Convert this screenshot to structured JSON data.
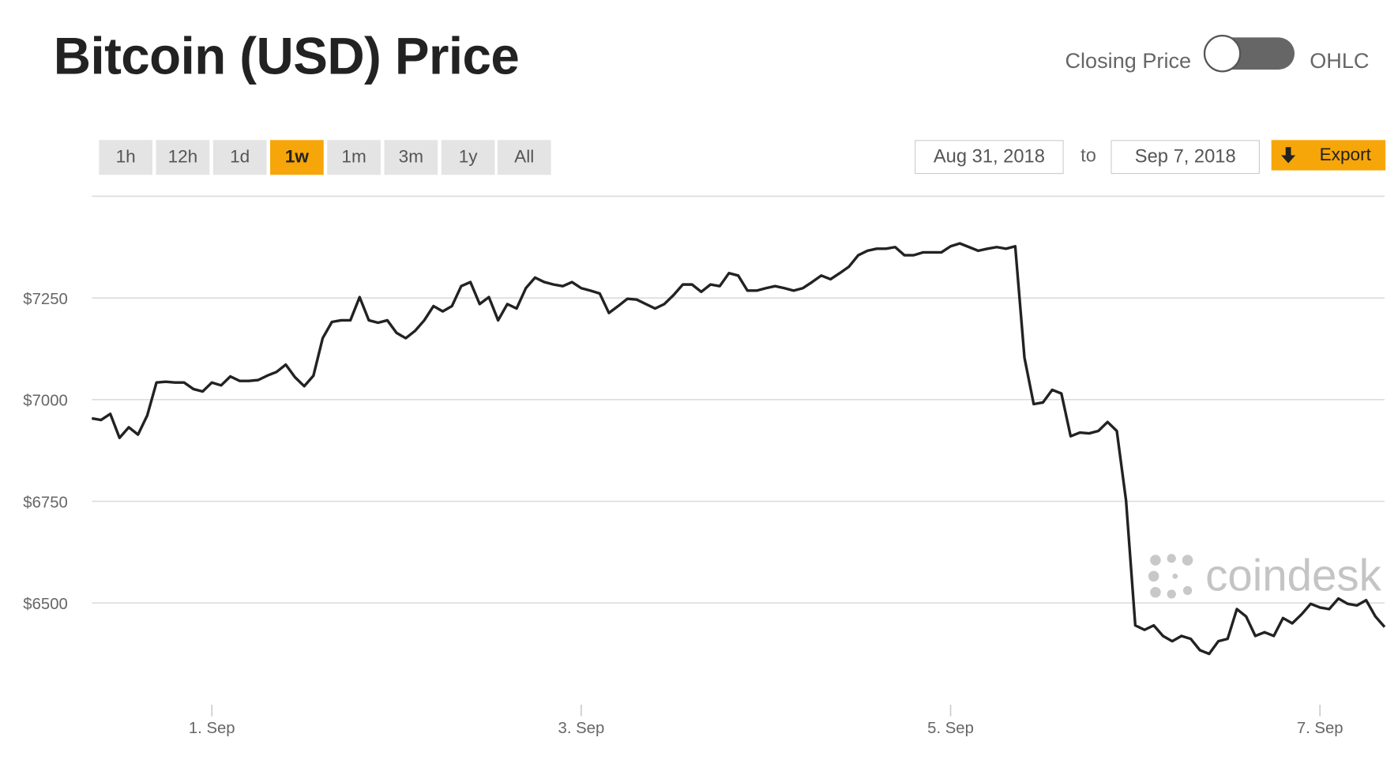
{
  "title": "Bitcoin (USD) Price",
  "toggle": {
    "left_label": "Closing Price",
    "right_label": "OHLC"
  },
  "ranges": [
    "1h",
    "12h",
    "1d",
    "1w",
    "1m",
    "3m",
    "1y",
    "All"
  ],
  "active_range": 3,
  "date_from": "Aug 31, 2018",
  "date_separator": "to",
  "date_to": "Sep 7, 2018",
  "export_label": "Export",
  "watermark": "coindesk",
  "chart_data": {
    "type": "line",
    "color": "#222222",
    "x": [
      0.35,
      0.4,
      0.45,
      0.5,
      0.55,
      0.6,
      0.65,
      0.7,
      0.75,
      0.8,
      0.85,
      0.9,
      0.95,
      1.0,
      1.05,
      1.1,
      1.15,
      1.2,
      1.25,
      1.3,
      1.35,
      1.4,
      1.45,
      1.5,
      1.55,
      1.6,
      1.65,
      1.7,
      1.75,
      1.8,
      1.85,
      1.9,
      1.95,
      2.0,
      2.05,
      2.1,
      2.15,
      2.2,
      2.25,
      2.3,
      2.35,
      2.4,
      2.45,
      2.5,
      2.55,
      2.6,
      2.65,
      2.7,
      2.75,
      2.8,
      2.85,
      2.9,
      2.95,
      3.0,
      3.05,
      3.1,
      3.15,
      3.2,
      3.25,
      3.3,
      3.35,
      3.4,
      3.45,
      3.5,
      3.55,
      3.6,
      3.65,
      3.7,
      3.75,
      3.8,
      3.85,
      3.9,
      3.95,
      4.0,
      4.05,
      4.1,
      4.15,
      4.2,
      4.25,
      4.3,
      4.35,
      4.4,
      4.45,
      4.5,
      4.55,
      4.6,
      4.65,
      4.7,
      4.75,
      4.8,
      4.85,
      4.9,
      4.95,
      5.0,
      5.05,
      5.1,
      5.15,
      5.2,
      5.25,
      5.3,
      5.35,
      5.4,
      5.45,
      5.5,
      5.55,
      5.6,
      5.65,
      5.7,
      5.75,
      5.8,
      5.85,
      5.9,
      5.95,
      6.0,
      6.05,
      6.1,
      6.15,
      6.2,
      6.25,
      6.3,
      6.35,
      6.4,
      6.45,
      6.5,
      6.55,
      6.6,
      6.65,
      6.7,
      6.75,
      6.8,
      6.85,
      6.9,
      6.95,
      7.0,
      7.05,
      7.1,
      7.15,
      7.2,
      7.25,
      7.3,
      7.35
    ],
    "values": [
      6954,
      6950,
      6965,
      6906,
      6932,
      6914,
      6961,
      7042,
      7044,
      7042,
      7042,
      7026,
      7020,
      7042,
      7035,
      7057,
      7046,
      7046,
      7048,
      7059,
      7068,
      7086,
      7055,
      7033,
      7059,
      7151,
      7191,
      7195,
      7195,
      7252,
      7195,
      7189,
      7195,
      7164,
      7151,
      7169,
      7195,
      7230,
      7217,
      7230,
      7279,
      7289,
      7235,
      7252,
      7195,
      7235,
      7224,
      7274,
      7300,
      7289,
      7283,
      7279,
      7289,
      7274,
      7268,
      7261,
      7213,
      7230,
      7248,
      7246,
      7235,
      7224,
      7235,
      7257,
      7283,
      7283,
      7265,
      7283,
      7279,
      7311,
      7305,
      7268,
      7268,
      7274,
      7279,
      7274,
      7268,
      7274,
      7289,
      7305,
      7296,
      7311,
      7327,
      7355,
      7366,
      7371,
      7371,
      7375,
      7355,
      7355,
      7362,
      7362,
      7362,
      7377,
      7384,
      7375,
      7366,
      7371,
      7375,
      7371,
      7377,
      7103,
      6989,
      6993,
      7024,
      7015,
      6910,
      6919,
      6917,
      6923,
      6945,
      6923,
      6752,
      6445,
      6434,
      6445,
      6419,
      6406,
      6419,
      6412,
      6384,
      6375,
      6406,
      6412,
      6485,
      6467,
      6419,
      6428,
      6419,
      6463,
      6450,
      6472,
      6498,
      6489,
      6485,
      6511,
      6498,
      6494,
      6507,
      6467,
      6441
    ],
    "xlim": [
      0.35,
      7.35
    ],
    "ylim": [
      6250,
      7500
    ],
    "xticks": [
      {
        "value": 1,
        "label": "1. Sep"
      },
      {
        "value": 3,
        "label": "3. Sep"
      },
      {
        "value": 5,
        "label": "5. Sep"
      },
      {
        "value": 7,
        "label": "7. Sep"
      }
    ],
    "yticks": [
      {
        "value": 6500,
        "label": "$6500"
      },
      {
        "value": 6750,
        "label": "$6750"
      },
      {
        "value": 7000,
        "label": "$7000"
      },
      {
        "value": 7250,
        "label": "$7250"
      }
    ],
    "grid": true
  }
}
